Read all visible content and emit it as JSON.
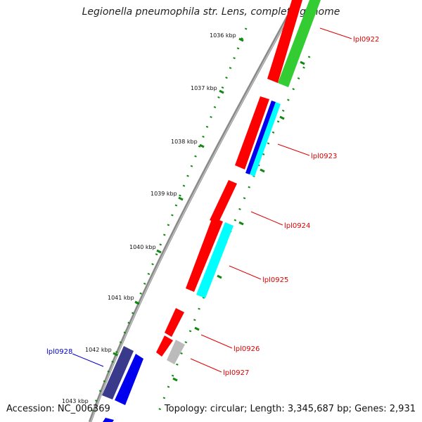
{
  "title": "Legionella pneumophila str. Lens, complete genome",
  "footer": {
    "accession": "Accession: NC_006369",
    "topology": "Topology: circular; Length: 3,345,687 bp; Genes: 2,931"
  },
  "ruler": [
    {
      "label": "1036 kbp"
    },
    {
      "label": "1037 kbp"
    },
    {
      "label": "1038 kbp"
    },
    {
      "label": "1039 kbp"
    },
    {
      "label": "1040 kbp"
    },
    {
      "label": "1041 kbp"
    },
    {
      "label": "1042 kbp"
    },
    {
      "label": "1043 kbp"
    }
  ],
  "gene_labels": [
    {
      "text": "lpl0922",
      "color": "#dd0000"
    },
    {
      "text": "lpl0923",
      "color": "#dd0000"
    },
    {
      "text": "lpl0924",
      "color": "#dd0000"
    },
    {
      "text": "lpl0925",
      "color": "#dd0000"
    },
    {
      "text": "lpl0926",
      "color": "#dd0000"
    },
    {
      "text": "lpl0927",
      "color": "#dd0000"
    },
    {
      "text": "lpl0928",
      "color": "#0000cc"
    }
  ],
  "colors": {
    "red": "#ff0000",
    "green": "#33cc33",
    "blue": "#0000ee",
    "cyan": "#00ffff",
    "navy": "#3a3a8c",
    "gray": "#bbbbbb",
    "backbone": "#777777",
    "ticks": "#118811"
  }
}
